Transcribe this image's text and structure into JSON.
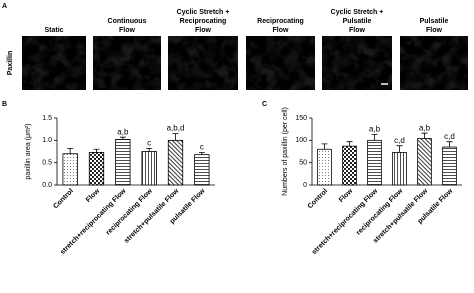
{
  "panel_a": {
    "label": "A",
    "row_label": "Paxillin",
    "columns": [
      [
        "Static"
      ],
      [
        "Continuous",
        "Flow"
      ],
      [
        "Cyclic Stretch +",
        "Reciprocating",
        "Flow"
      ],
      [
        "Reciprocating",
        "Flow"
      ],
      [
        "Cyclic Stretch +",
        "Pulsatile",
        "Flow"
      ],
      [
        "Pulsatile",
        "Flow"
      ]
    ]
  },
  "chart_data": [
    {
      "type": "bar",
      "panel": "B",
      "ylabel": "paxillin area (μm²)",
      "categories": [
        "Control",
        "Flow",
        "stretch+reciprocating Flow",
        "reciprocating Flow",
        "stretch+pulsatile Flow",
        "pulsatile Flow"
      ],
      "values": [
        0.7,
        0.73,
        1.02,
        0.75,
        1.0,
        0.68
      ],
      "errors": [
        0.12,
        0.07,
        0.05,
        0.07,
        0.15,
        0.05
      ],
      "annotations": [
        null,
        null,
        "a,b",
        "c",
        "a,b,d",
        "c"
      ],
      "patterns": [
        "dots",
        "checker",
        "hlines",
        "vlines",
        "diagonal",
        "hlines"
      ],
      "ylim": [
        0,
        1.5
      ],
      "yticks": [
        {
          "value": 0,
          "label": "0.0"
        },
        0.5,
        {
          "value": 1,
          "label": "1.0"
        },
        1.5
      ]
    },
    {
      "type": "bar",
      "panel": "C",
      "ylabel": "Numbers of paxillin (per cell)",
      "categories": [
        "Control",
        "Flow",
        "stretch+reciprocating Flow",
        "reciprocating Flow",
        "stretch+pulsatile Flow",
        "pulsatile Flow"
      ],
      "values": [
        80,
        87,
        100,
        73,
        104,
        85
      ],
      "errors": [
        12,
        10,
        13,
        15,
        12,
        12
      ],
      "annotations": [
        null,
        null,
        "a,b",
        "c,d",
        "a,b",
        "c,d"
      ],
      "patterns": [
        "dots",
        "checker",
        "hlines",
        "vlines",
        "diagonal",
        "hlines"
      ],
      "ylim": [
        0,
        150
      ],
      "yticks": [
        0,
        50,
        100,
        150
      ]
    }
  ]
}
